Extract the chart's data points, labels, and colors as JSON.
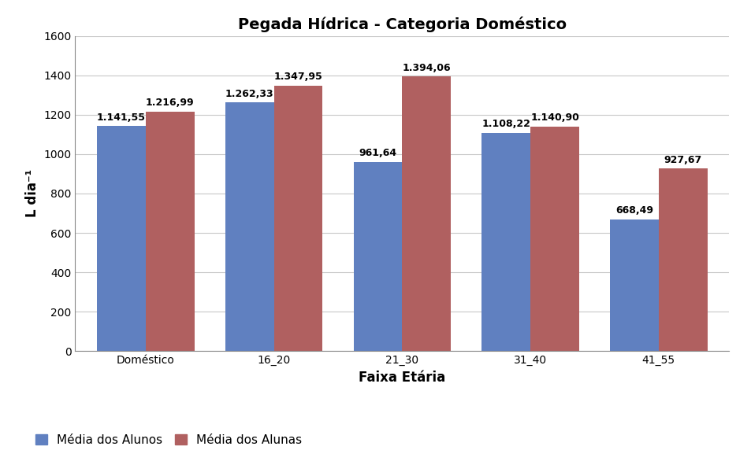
{
  "title": "Pegada Hídrica - Categoria Doméstico",
  "categories": [
    "Doméstico",
    "16_20",
    "21_30",
    "31_40",
    "41_55"
  ],
  "series": [
    {
      "label": "Média dos Alunos",
      "values": [
        1141.55,
        1262.33,
        961.64,
        1108.22,
        668.49
      ],
      "color": "#6080C0"
    },
    {
      "label": "Média dos Alunas",
      "values": [
        1216.99,
        1347.95,
        1394.06,
        1140.9,
        927.67
      ],
      "color": "#B06060"
    }
  ],
  "ylabel": "L dia⁻¹",
  "xlabel": "Faixa Etária",
  "ylim": [
    0,
    1600
  ],
  "yticks": [
    0,
    200,
    400,
    600,
    800,
    1000,
    1200,
    1400,
    1600
  ],
  "bar_width": 0.38,
  "title_fontsize": 14,
  "label_fontsize": 12,
  "tick_fontsize": 10,
  "annot_fontsize": 9,
  "background_color": "#ffffff",
  "grid_color": "#c8c8c8"
}
